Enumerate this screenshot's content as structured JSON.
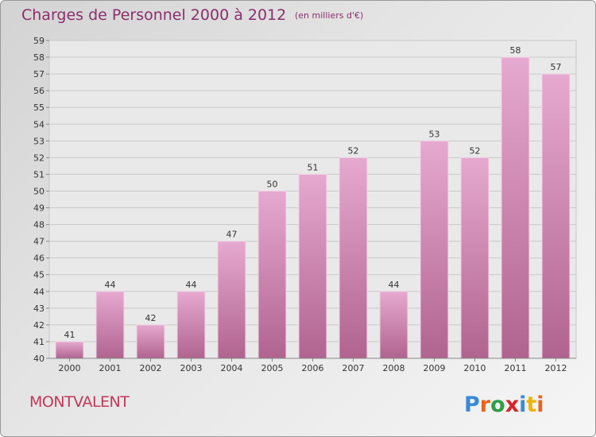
{
  "header": {
    "title": "Charges de Personnel 2000 à 2012",
    "unit": "(en milliers d'€)"
  },
  "footer": {
    "city": "MONTVALENT",
    "logo_text": "Proxiti"
  },
  "colors": {
    "bar_top": "#e6a9cf",
    "bar_bottom": "#b0648f",
    "title": "#8a2f6c",
    "city": "#c0395a"
  },
  "chart_data": {
    "type": "bar",
    "title": "Charges de Personnel 2000 à 2012",
    "subtitle": "(en milliers d'€)",
    "categories": [
      "2000",
      "2001",
      "2002",
      "2003",
      "2004",
      "2005",
      "2006",
      "2007",
      "2008",
      "2009",
      "2010",
      "2011",
      "2012"
    ],
    "values": [
      41,
      44,
      42,
      44,
      47,
      50,
      51,
      52,
      44,
      53,
      52,
      58,
      57
    ],
    "ylim": [
      40,
      59
    ],
    "yticks": [
      40,
      41,
      42,
      43,
      44,
      45,
      46,
      47,
      48,
      49,
      50,
      51,
      52,
      53,
      54,
      55,
      56,
      57,
      58,
      59
    ],
    "grid": true,
    "data_labels": true
  }
}
